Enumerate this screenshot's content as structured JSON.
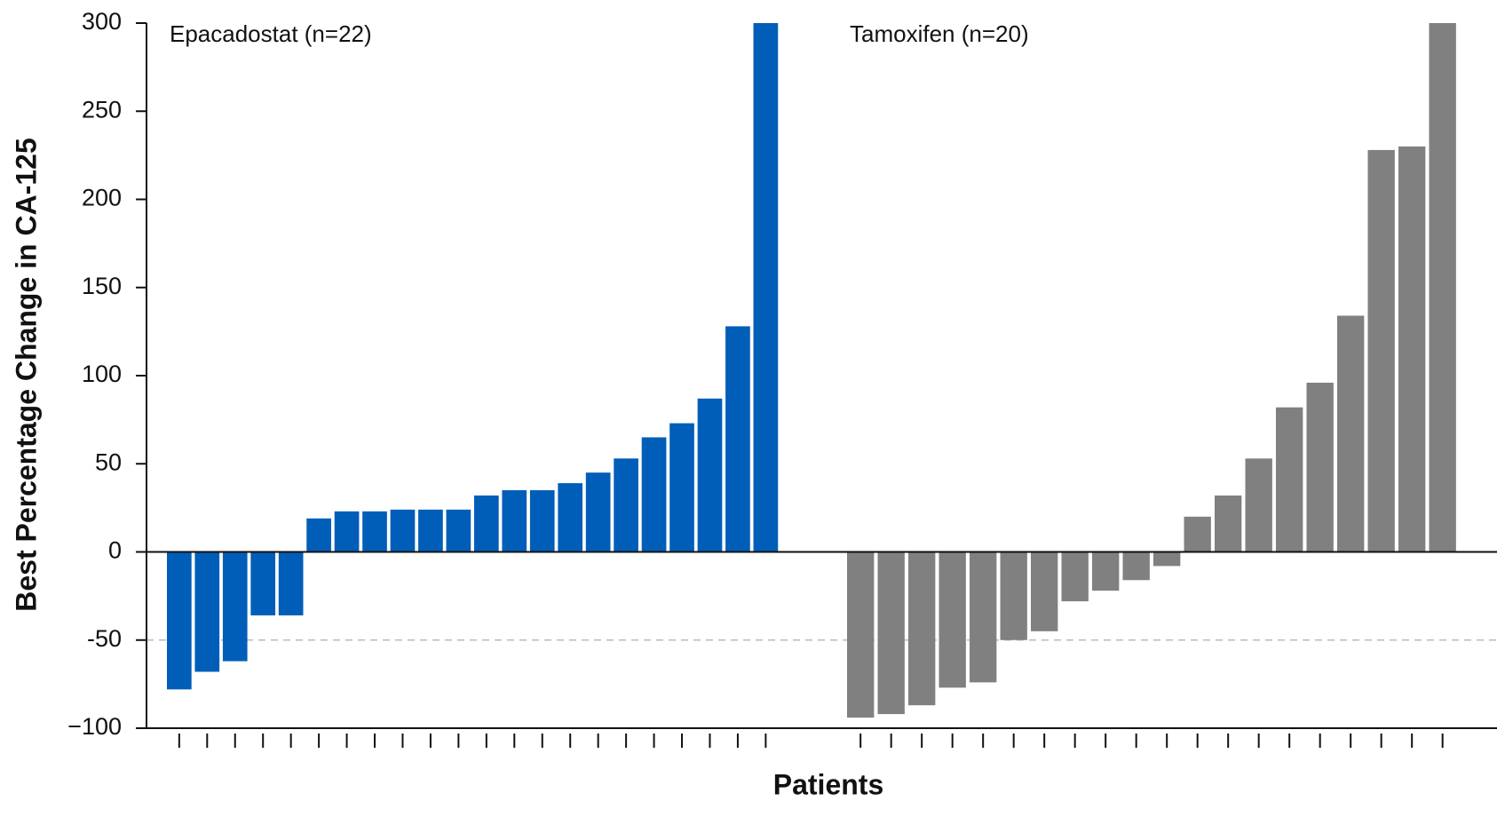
{
  "chart_data": {
    "type": "bar",
    "y_label": "Best Percentage Change in CA-125",
    "x_label": "Patients",
    "ylim": [
      -100,
      300
    ],
    "yticks": [
      300,
      250,
      200,
      150,
      100,
      50,
      0,
      -50,
      {
        "value": -100,
        "label": "−100"
      }
    ],
    "reference_line": -50,
    "series": [
      {
        "name": "Epacadostat (n=22)",
        "color": "#005eb8",
        "values": [
          -78,
          -68,
          -62,
          -36,
          -36,
          19,
          23,
          23,
          24,
          24,
          24,
          32,
          35,
          35,
          39,
          45,
          53,
          65,
          73,
          87,
          128,
          300
        ]
      },
      {
        "name": "Tamoxifen (n=20)",
        "color": "#808080",
        "values": [
          -94,
          -92,
          -87,
          -77,
          -74,
          -50,
          -45,
          -28,
          -22,
          -16,
          -8,
          20,
          32,
          53,
          82,
          96,
          134,
          228,
          230,
          300
        ]
      }
    ]
  }
}
